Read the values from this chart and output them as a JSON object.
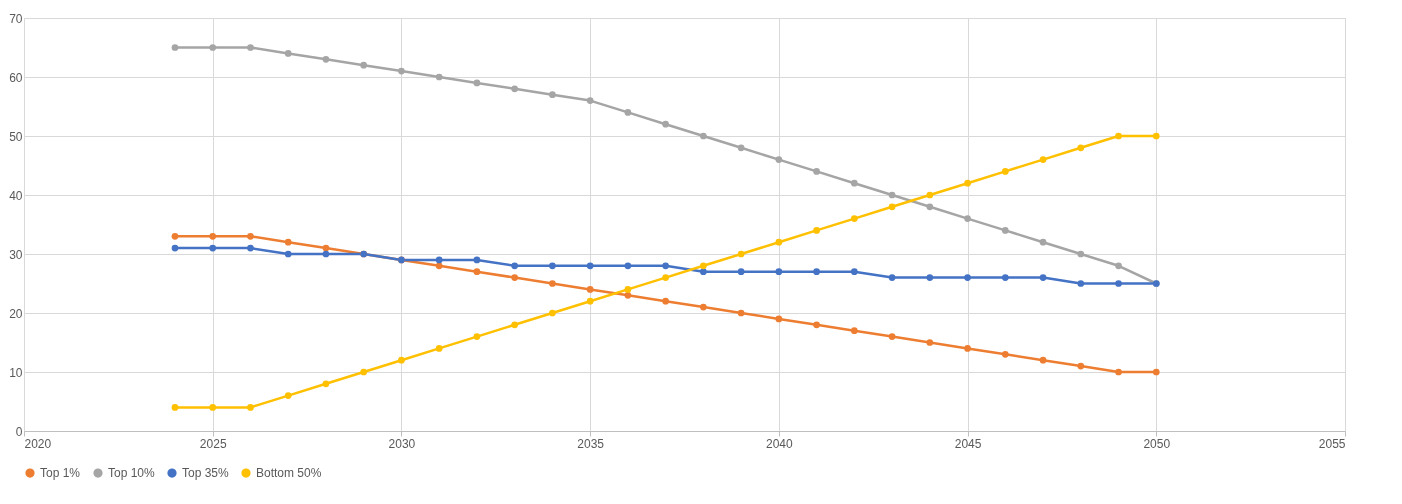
{
  "chart_data": {
    "type": "line",
    "x": [
      2024,
      2025,
      2026,
      2027,
      2028,
      2029,
      2030,
      2031,
      2032,
      2033,
      2034,
      2035,
      2036,
      2037,
      2038,
      2039,
      2040,
      2041,
      2042,
      2043,
      2044,
      2045,
      2046,
      2047,
      2048,
      2049,
      2050
    ],
    "series": [
      {
        "name": "Top 1%",
        "color": "#ed7d31",
        "values": [
          33,
          33,
          33,
          32,
          31,
          30,
          29,
          28,
          27,
          26,
          25,
          24,
          23,
          22,
          21,
          20,
          19,
          18,
          17,
          16,
          15,
          14,
          13,
          12,
          11,
          10,
          10
        ]
      },
      {
        "name": "Top 10%",
        "color": "#a5a5a5",
        "values": [
          65,
          65,
          65,
          64,
          63,
          62,
          61,
          60,
          59,
          58,
          57,
          56,
          54,
          52,
          50,
          48,
          46,
          44,
          42,
          40,
          38,
          36,
          34,
          32,
          30,
          28,
          25
        ]
      },
      {
        "name": "Top 35%",
        "color": "#4472c4",
        "values": [
          31,
          31,
          31,
          30,
          30,
          30,
          29,
          29,
          29,
          28,
          28,
          28,
          28,
          28,
          27,
          27,
          27,
          27,
          27,
          26,
          26,
          26,
          26,
          26,
          25,
          25,
          25
        ]
      },
      {
        "name": "Bottom 50%",
        "color": "#ffc000",
        "values": [
          4,
          4,
          4,
          6,
          8,
          10,
          12,
          14,
          16,
          18,
          20,
          22,
          24,
          26,
          28,
          30,
          32,
          34,
          36,
          38,
          40,
          42,
          44,
          46,
          48,
          50,
          50
        ]
      }
    ],
    "xlim": [
      2020,
      2055
    ],
    "xticks": [
      2020,
      2025,
      2030,
      2035,
      2040,
      2045,
      2050,
      2055
    ],
    "ylim": [
      0,
      70
    ],
    "yticks": [
      0,
      10,
      20,
      30,
      40,
      50,
      60,
      70
    ],
    "grid": true,
    "legend": "bottom",
    "marker": "circle",
    "line_style": "solid"
  }
}
